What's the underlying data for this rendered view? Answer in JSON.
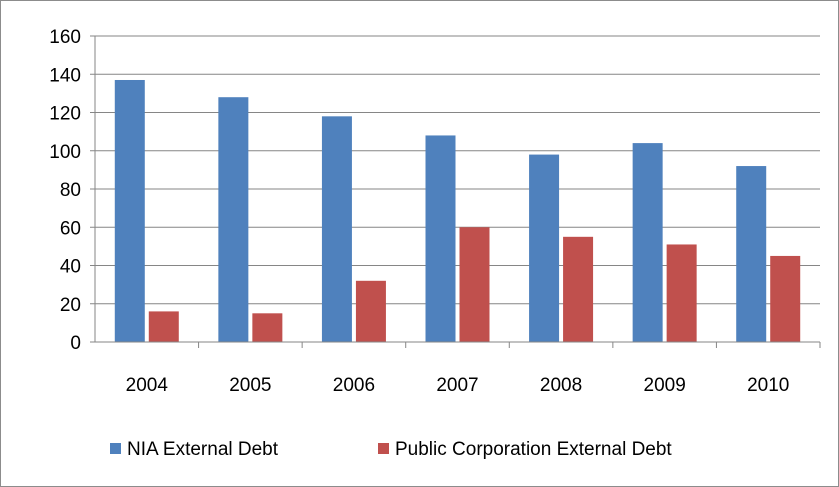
{
  "chart_data": {
    "type": "bar",
    "categories": [
      "2004",
      "2005",
      "2006",
      "2007",
      "2008",
      "2009",
      "2010"
    ],
    "series": [
      {
        "name": "NIA External Debt",
        "color": "#4f81bd",
        "values": [
          137,
          128,
          118,
          108,
          98,
          104,
          92
        ]
      },
      {
        "name": "Public Corporation External Debt",
        "color": "#c0504d",
        "values": [
          16,
          15,
          32,
          60,
          55,
          51,
          45
        ]
      }
    ],
    "title": "",
    "xlabel": "",
    "ylabel": "",
    "ylim": [
      0,
      160
    ],
    "yticks": [
      "0",
      "20",
      "40",
      "60",
      "80",
      "100",
      "120",
      "140",
      "160"
    ],
    "grid": true,
    "legend": "bottom"
  }
}
